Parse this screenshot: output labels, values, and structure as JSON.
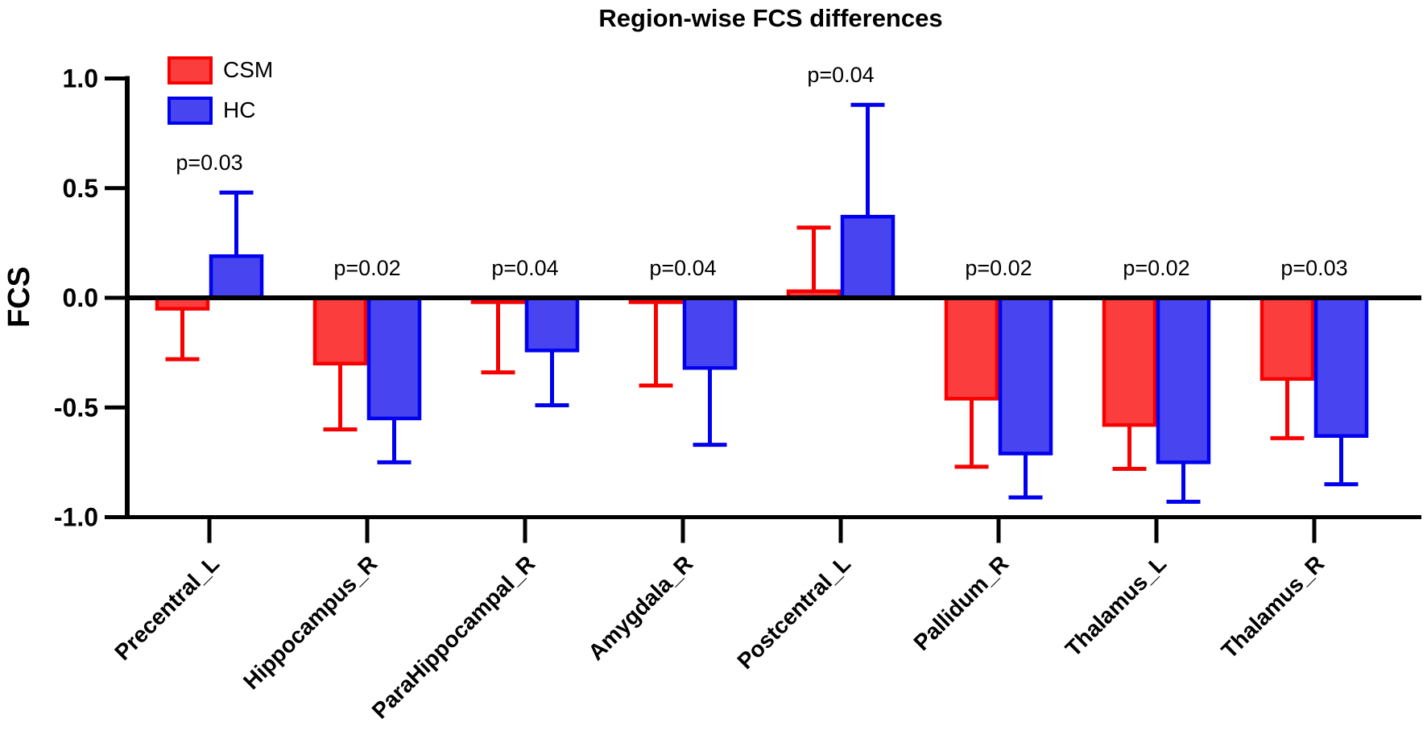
{
  "chart_data": {
    "type": "bar",
    "title": "Region-wise FCS differences",
    "ylabel": "FCS",
    "xlabel": "",
    "ylim": [
      -1.0,
      1.0
    ],
    "yticks": [
      "1.0",
      "0.5",
      "0.0",
      "-0.5",
      "-1.0"
    ],
    "ytick_values": [
      1.0,
      0.5,
      0.0,
      -0.5,
      -1.0
    ],
    "grid": false,
    "legend_position": "top-left",
    "error_bars": "one-sided whiskers extending away from zero",
    "categories": [
      "Precentral_L",
      "Hippocampus_R",
      "ParaHippocampal_R",
      "Amygdala_R",
      "Postcentral_L",
      "Pallidum_R",
      "Thalamus_L",
      "Thalamus_R"
    ],
    "p_values": [
      "p=0.03",
      "p=0.02",
      "p=0.04",
      "p=0.04",
      "p=0.04",
      "p=0.02",
      "p=0.02",
      "p=0.03"
    ],
    "series": [
      {
        "name": "CSM",
        "fill": "#FC3D3D",
        "stroke": "#F80000",
        "values": [
          -0.05,
          -0.3,
          -0.02,
          -0.02,
          0.03,
          -0.46,
          -0.58,
          -0.37
        ],
        "errors": [
          0.23,
          0.3,
          0.32,
          0.38,
          0.29,
          0.31,
          0.2,
          0.27
        ]
      },
      {
        "name": "HC",
        "fill": "#4744F0",
        "stroke": "#0000EE",
        "values": [
          0.19,
          -0.55,
          -0.24,
          -0.32,
          0.37,
          -0.71,
          -0.75,
          -0.63
        ],
        "errors": [
          0.29,
          0.2,
          0.25,
          0.35,
          0.51,
          0.2,
          0.18,
          0.22
        ]
      }
    ],
    "axis_color": "#000000"
  }
}
